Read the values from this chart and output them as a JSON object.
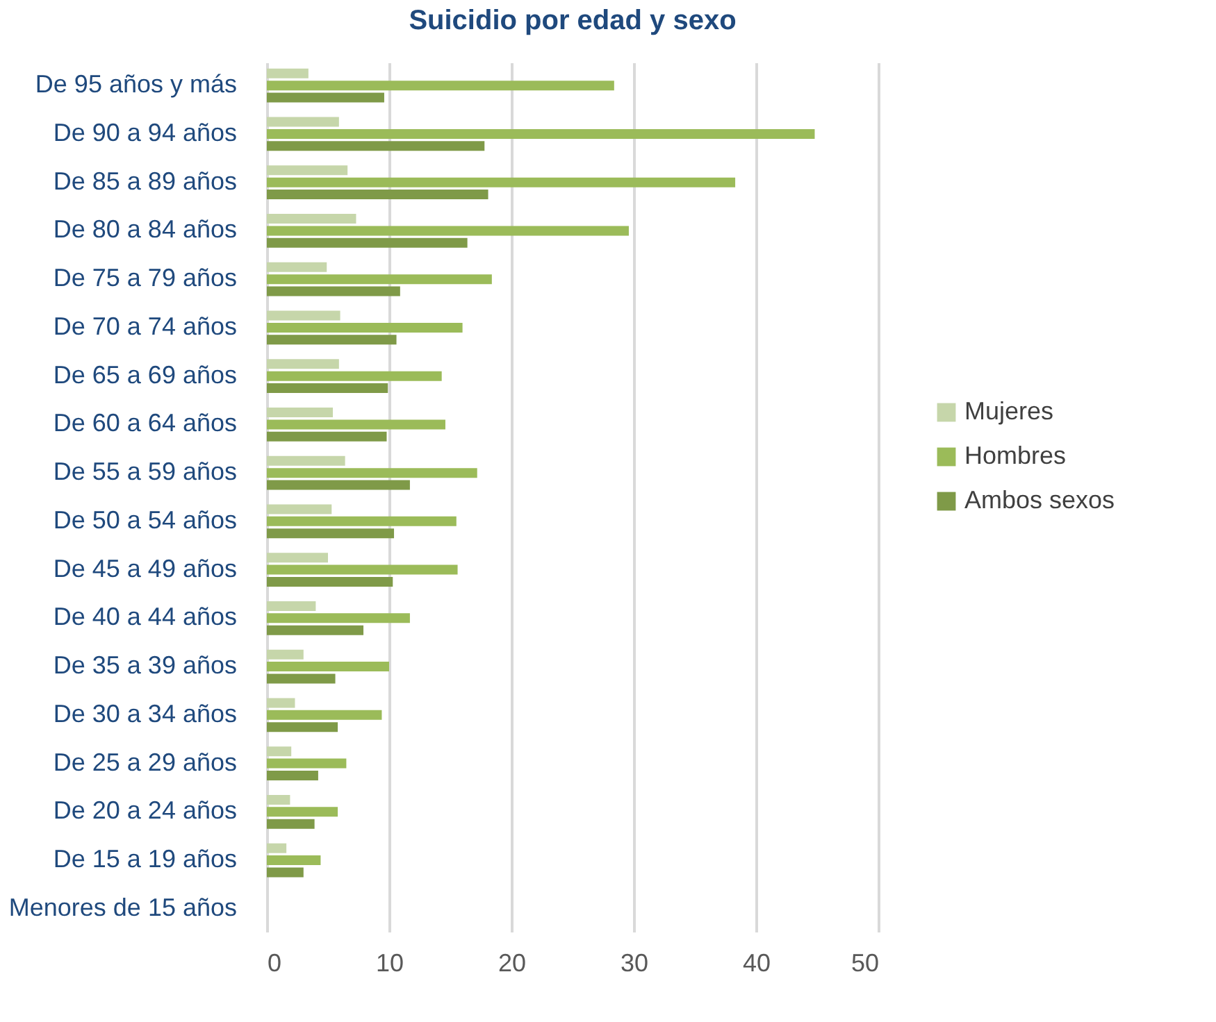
{
  "chart_data": {
    "type": "bar",
    "orientation": "horizontal",
    "title": "Suicidio por edad y sexo",
    "categories": [
      "De 95 años y más",
      "De 90 a 94 años",
      "De 85 a 89 años",
      "De 80 a 84 años",
      "De 75 a 79 años",
      "De 70 a 74 años",
      "De 65 a 69 años",
      "De 60 a 64 años",
      "De 55 a 59 años",
      "De 50 a 54 años",
      "De 45 a 49 años",
      "De 40 a 44 años",
      "De 35 a 39 años",
      "De 30 a 34 años",
      "De 25 a 29 años",
      "De 20 a 24 años",
      "De 15 a 19 años",
      "Menores de 15 años"
    ],
    "series": [
      {
        "name": "Mujeres",
        "color": "#c6d6aa",
        "values": [
          3.4,
          5.9,
          6.6,
          7.3,
          4.9,
          6.0,
          5.9,
          5.4,
          6.4,
          5.3,
          5.0,
          4.0,
          3.0,
          2.3,
          2.0,
          1.9,
          1.6,
          0
        ]
      },
      {
        "name": "Hombres",
        "color": "#9bbb59",
        "values": [
          28.4,
          44.8,
          38.3,
          29.6,
          18.4,
          16.0,
          14.3,
          14.6,
          17.2,
          15.5,
          15.6,
          11.7,
          10.0,
          9.4,
          6.5,
          5.8,
          4.4,
          0
        ]
      },
      {
        "name": "Ambos sexos",
        "color": "#7f9a48",
        "values": [
          9.6,
          17.8,
          18.1,
          16.4,
          10.9,
          10.6,
          9.9,
          9.8,
          11.7,
          10.4,
          10.3,
          7.9,
          5.6,
          5.8,
          4.2,
          3.9,
          3.0,
          0
        ]
      }
    ],
    "xlim": [
      0,
      50
    ],
    "xticks": [
      0,
      10,
      20,
      30,
      40,
      50
    ],
    "grid": "x",
    "legend": "right"
  }
}
